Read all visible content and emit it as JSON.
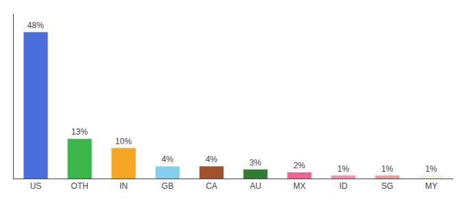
{
  "chart_data": {
    "type": "bar",
    "categories": [
      "US",
      "OTH",
      "IN",
      "GB",
      "CA",
      "AU",
      "MX",
      "ID",
      "SG",
      "MY"
    ],
    "values": [
      48,
      13,
      10,
      4,
      4,
      3,
      2,
      1,
      1,
      1
    ],
    "value_labels": [
      "48%",
      "13%",
      "10%",
      "4%",
      "4%",
      "3%",
      "2%",
      "1%",
      "1%",
      "1%"
    ],
    "colors": [
      "#4a6fdc",
      "#3cb54a",
      "#f5a623",
      "#87ceeb",
      "#a0522d",
      "#2e7d32",
      "#f06292",
      "#f48fb1",
      "#ef9a9a",
      "#f5f0e0"
    ],
    "data_labels": true,
    "ylim": [
      0,
      54
    ],
    "grid": false,
    "tick_labels": "x"
  }
}
